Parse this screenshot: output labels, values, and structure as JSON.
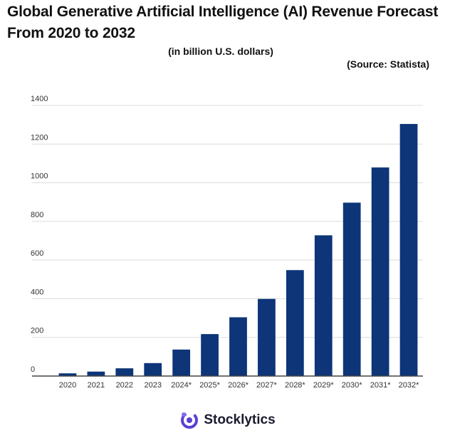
{
  "header": {
    "title_line1": "Global Generative Artificial Intelligence (AI) Revenue Forecast",
    "title_line2": "From 2020 to 2032",
    "subtitle": "(in billion U.S. dollars)",
    "source": "(Source: Statista)"
  },
  "brand": {
    "name": "Stocklytics",
    "logo_icon": "stocklytics-logo-icon",
    "logo_color": "#5b3fd6"
  },
  "chart_data": {
    "type": "bar",
    "categories": [
      "2020",
      "2021",
      "2022",
      "2023",
      "2024*",
      "2025*",
      "2026*",
      "2027*",
      "2028*",
      "2029*",
      "2030*",
      "2031*",
      "2032*"
    ],
    "values": [
      14,
      23,
      40,
      67,
      137,
      217,
      304,
      399,
      548,
      728,
      897,
      1079,
      1304
    ],
    "ylim": [
      0,
      1400
    ],
    "yticks": [
      0,
      200,
      400,
      600,
      800,
      1000,
      1200,
      1400
    ],
    "grid": true,
    "bar_color": "#0d3578",
    "title": "Global Generative Artificial Intelligence (AI) Revenue Forecast From 2020 to 2032",
    "xlabel": "",
    "ylabel": ""
  }
}
